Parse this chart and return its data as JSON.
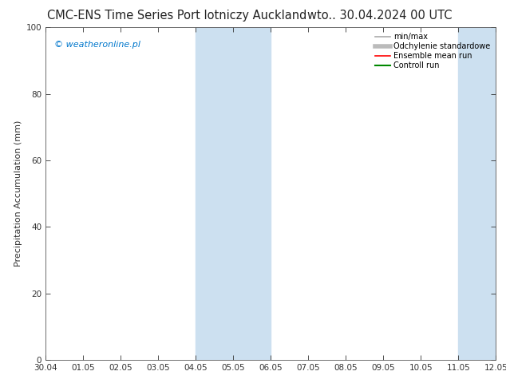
{
  "title_left": "CMC-ENS Time Series Port lotniczy Auckland",
  "title_right": "wto.. 30.04.2024 00 UTC",
  "ylabel": "Precipitation Accumulation (mm)",
  "watermark": "© weatheronline.pl",
  "watermark_color": "#0077cc",
  "ylim": [
    0,
    100
  ],
  "yticks": [
    0,
    20,
    40,
    60,
    80,
    100
  ],
  "xtick_labels": [
    "30.04",
    "01.05",
    "02.05",
    "03.05",
    "04.05",
    "05.05",
    "06.05",
    "07.05",
    "08.05",
    "09.05",
    "10.05",
    "11.05",
    "12.05"
  ],
  "xtick_positions": [
    0,
    1,
    2,
    3,
    4,
    5,
    6,
    7,
    8,
    9,
    10,
    11,
    12
  ],
  "shaded_regions": [
    {
      "xmin": 4,
      "xmax": 6,
      "color": "#cce0f0"
    },
    {
      "xmin": 11,
      "xmax": 12,
      "color": "#cce0f0"
    }
  ],
  "legend_items": [
    {
      "label": "min/max",
      "color": "#aaaaaa",
      "lw": 1.2
    },
    {
      "label": "Odchylenie standardowe",
      "color": "#bbbbbb",
      "lw": 4
    },
    {
      "label": "Ensemble mean run",
      "color": "#ff0000",
      "lw": 1.2
    },
    {
      "label": "Controll run",
      "color": "#008800",
      "lw": 1.5
    }
  ],
  "bg_color": "#ffffff",
  "title_fontsize": 10.5,
  "axis_fontsize": 7.5,
  "legend_fontsize": 7,
  "ylabel_fontsize": 8,
  "watermark_fontsize": 8
}
